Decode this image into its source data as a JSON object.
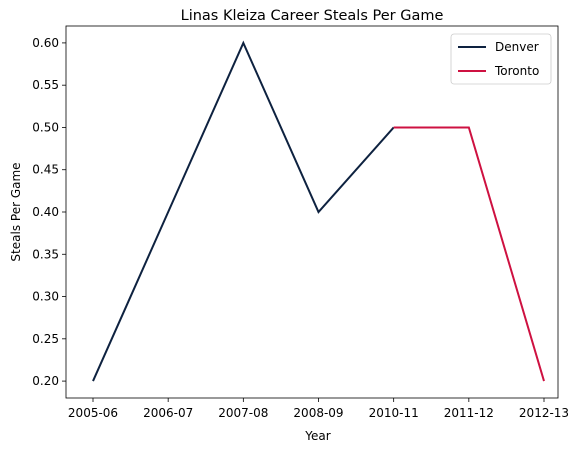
{
  "chart_data": {
    "type": "line",
    "title": "Linas Kleiza Career Steals Per Game",
    "xlabel": "Year",
    "ylabel": "Steals Per Game",
    "categories": [
      "2005-06",
      "2006-07",
      "2007-08",
      "2008-09",
      "2010-11",
      "2011-12",
      "2012-13"
    ],
    "y_ticks": [
      "0.20",
      "0.25",
      "0.30",
      "0.35",
      "0.40",
      "0.45",
      "0.50",
      "0.55",
      "0.60"
    ],
    "ylim": [
      0.18,
      0.62
    ],
    "grid": false,
    "legend": "top-right",
    "series": [
      {
        "name": "Denver",
        "color": "#0e2240",
        "x": [
          "2005-06",
          "2006-07",
          "2007-08",
          "2008-09",
          "2010-11"
        ],
        "values": [
          0.2,
          0.4,
          0.6,
          0.4,
          0.5
        ]
      },
      {
        "name": "Toronto",
        "color": "#ce1141",
        "x": [
          "2010-11",
          "2011-12",
          "2012-13"
        ],
        "values": [
          0.5,
          0.5,
          0.2
        ]
      }
    ]
  }
}
